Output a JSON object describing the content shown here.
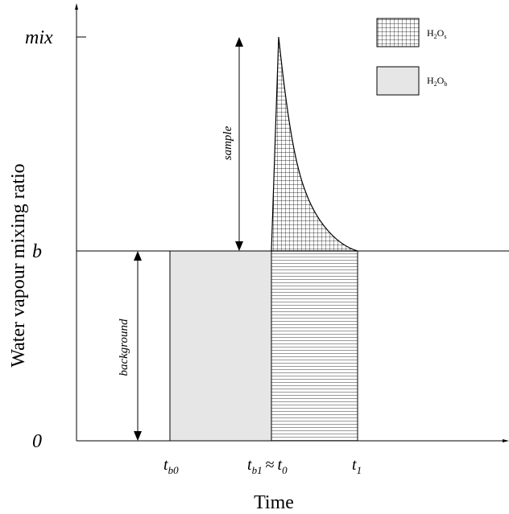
{
  "axes": {
    "y_label": "Water vapour mixing ratio",
    "x_label": "Time"
  },
  "y_ticks": {
    "top": "mix",
    "middle": "b",
    "bottom": "0"
  },
  "x_ticks": {
    "tb0": {
      "base": "t",
      "sub": "b0"
    },
    "tb1_t0": {
      "base": "t",
      "sub": "b1",
      "approx": "≈",
      "base2": "t",
      "sub2": "0"
    },
    "t1": {
      "base": "t",
      "sub": "1"
    }
  },
  "annotations": {
    "sample": "sample",
    "background": "background"
  },
  "legend": {
    "sample": {
      "main": "H",
      "sub1": "2",
      "main2": "O",
      "sub2": "s"
    },
    "background": {
      "main": "H",
      "sub1": "2",
      "main2": "O",
      "sub2": "b"
    }
  },
  "colors": {
    "background_fill": "#e6e6e6",
    "line": "#000000"
  }
}
